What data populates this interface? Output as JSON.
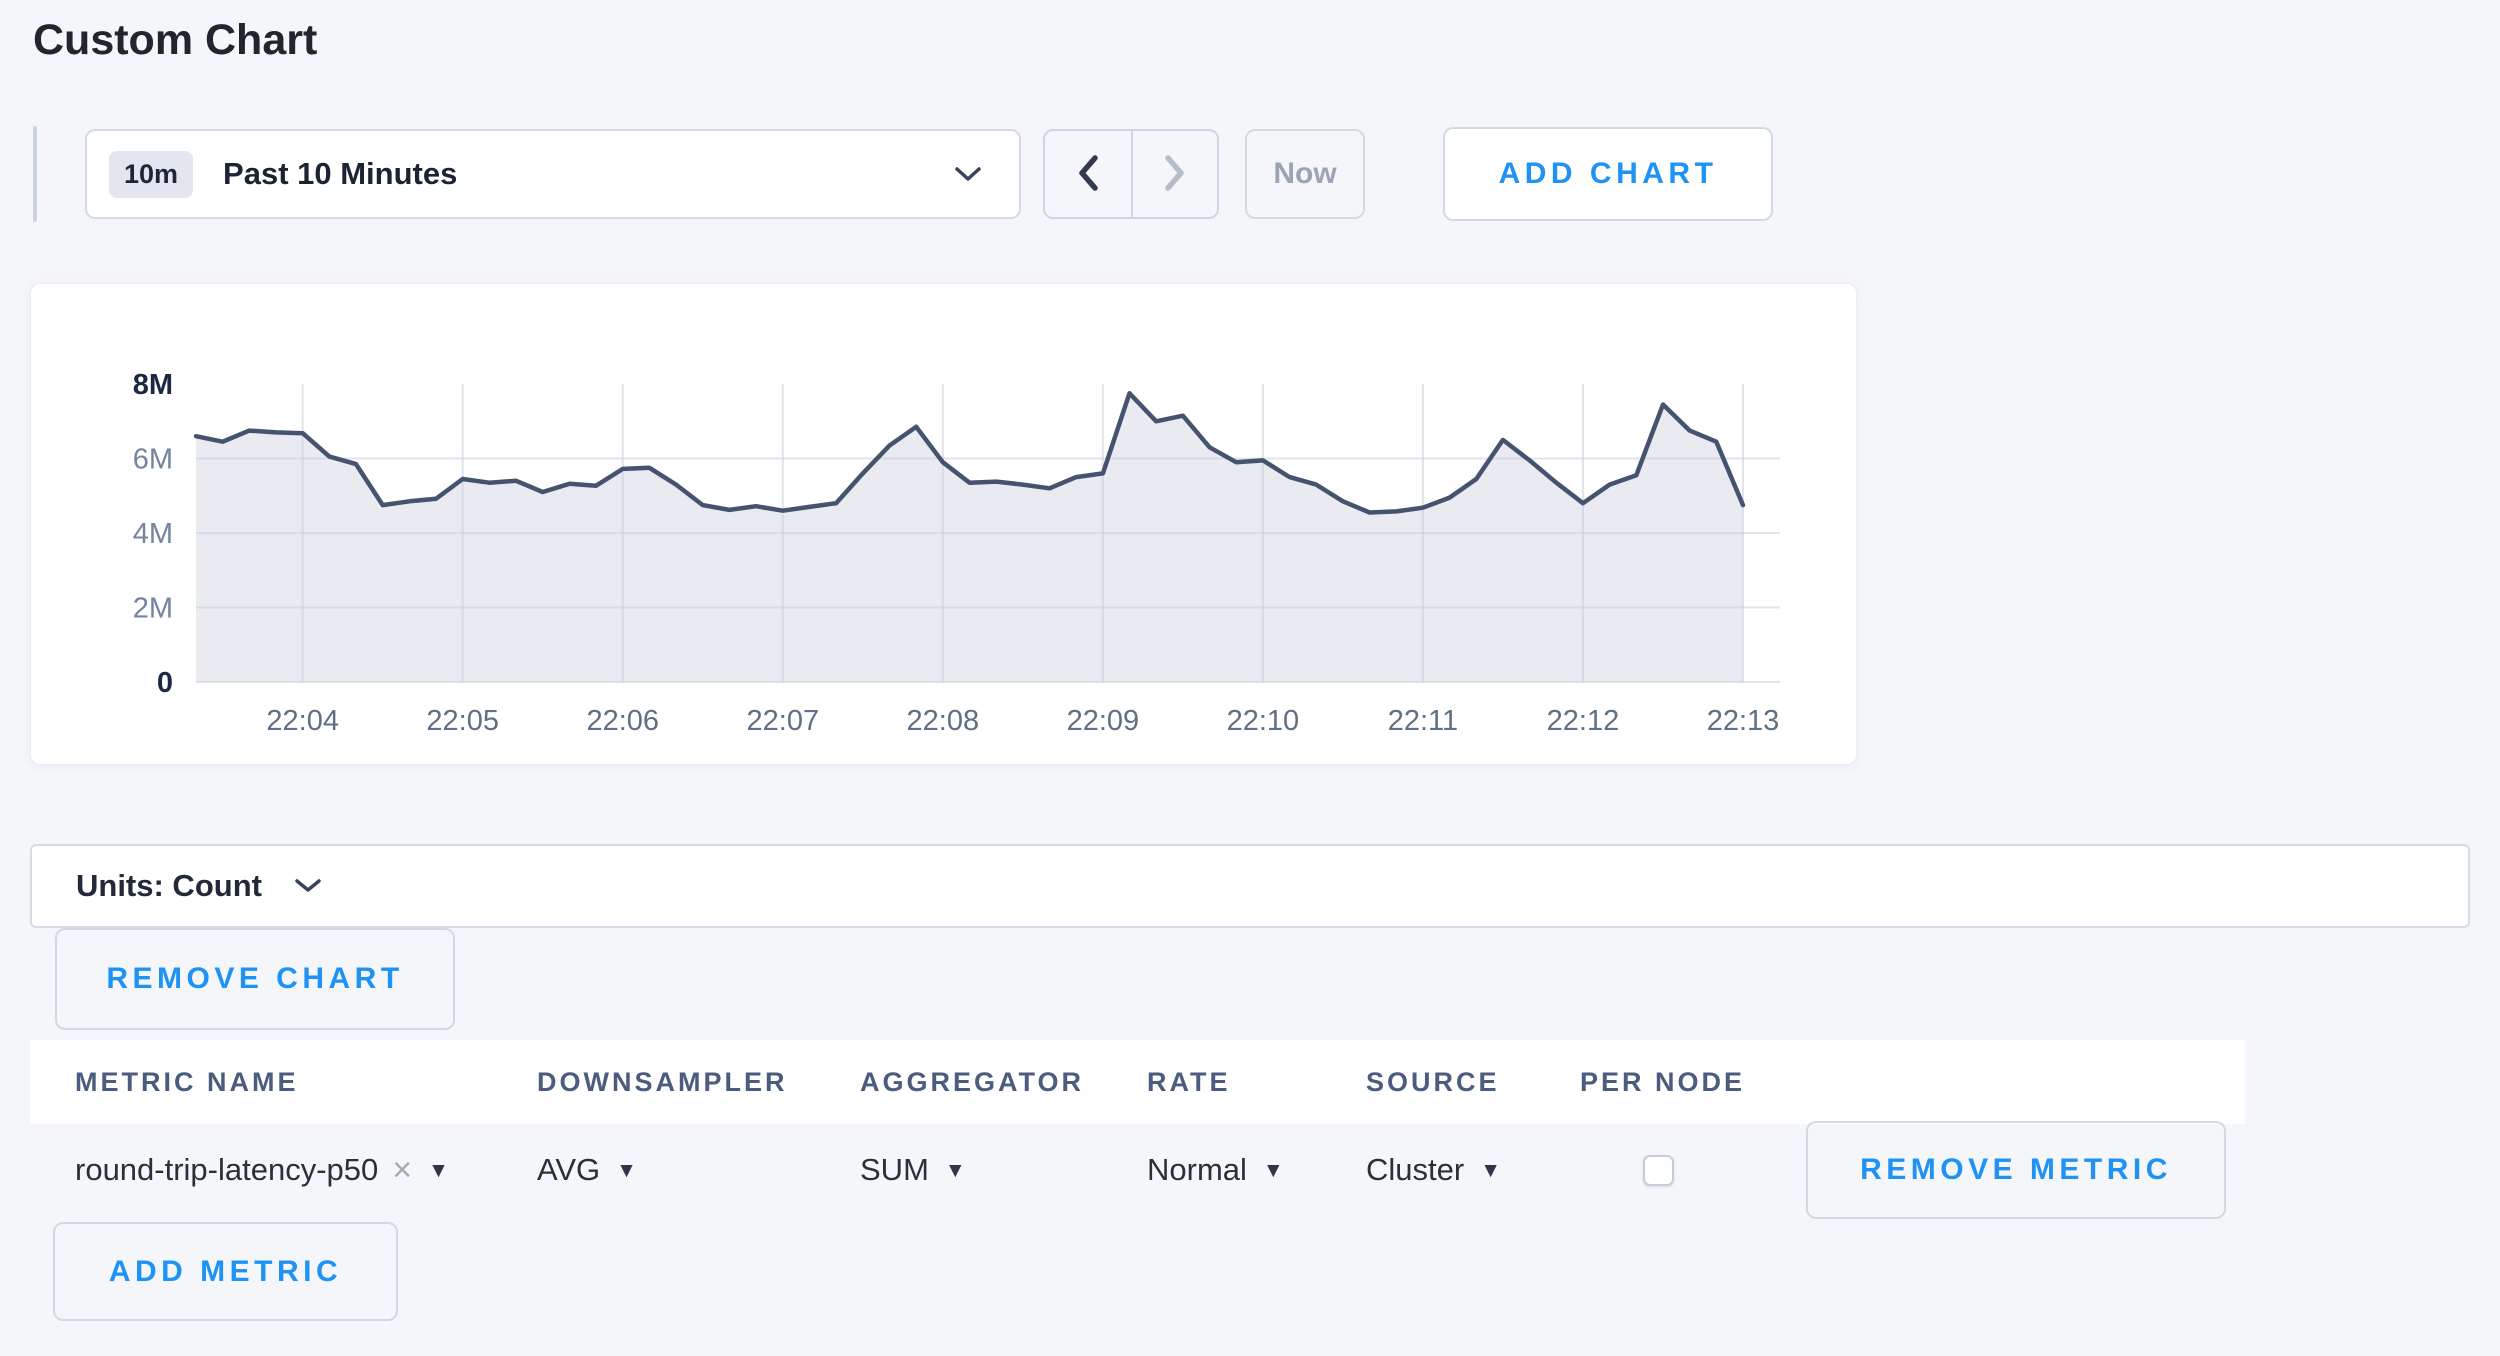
{
  "page": {
    "title": "Custom Chart",
    "background": "#f5f6fa",
    "accent_blue": "#1e93f5"
  },
  "toolbar": {
    "time_scale_badge": "10m",
    "time_scale_label": "Past 10 Minutes",
    "now_label": "Now",
    "add_chart_label": "ADD CHART"
  },
  "chart_data": {
    "type": "area",
    "title": "",
    "units": "Count",
    "grid": true,
    "ylim": [
      0,
      8000000
    ],
    "x_interval_seconds": 10,
    "x_ticks": [
      {
        "index": 4,
        "label": "22:04"
      },
      {
        "index": 10,
        "label": "22:05"
      },
      {
        "index": 16,
        "label": "22:06"
      },
      {
        "index": 22,
        "label": "22:07"
      },
      {
        "index": 28,
        "label": "22:08"
      },
      {
        "index": 34,
        "label": "22:09"
      },
      {
        "index": 40,
        "label": "22:10"
      },
      {
        "index": 46,
        "label": "22:11"
      },
      {
        "index": 52,
        "label": "22:12"
      },
      {
        "index": 58,
        "label": "22:13"
      }
    ],
    "y_ticks": [
      {
        "value": 0,
        "label": "0",
        "bold": true
      },
      {
        "value": 2000000,
        "label": "2M",
        "bold": false
      },
      {
        "value": 4000000,
        "label": "4M",
        "bold": false
      },
      {
        "value": 6000000,
        "label": "6M",
        "bold": false
      },
      {
        "value": 8000000,
        "label": "8M",
        "bold": true
      }
    ],
    "series": [
      {
        "name": "round-trip-latency-p50",
        "values": [
          6600000,
          6450000,
          6750000,
          6700000,
          6680000,
          6050000,
          5850000,
          4750000,
          4850000,
          4920000,
          5450000,
          5350000,
          5400000,
          5100000,
          5320000,
          5270000,
          5720000,
          5750000,
          5300000,
          4750000,
          4620000,
          4720000,
          4600000,
          4700000,
          4800000,
          5600000,
          6350000,
          6850000,
          5900000,
          5350000,
          5380000,
          5300000,
          5200000,
          5500000,
          5600000,
          7750000,
          7000000,
          7150000,
          6300000,
          5900000,
          5950000,
          5500000,
          5300000,
          4850000,
          4550000,
          4580000,
          4680000,
          4950000,
          5450000,
          6500000,
          5950000,
          5350000,
          4800000,
          5300000,
          5550000,
          7450000,
          6750000,
          6450000,
          4750000
        ]
      }
    ],
    "line_color": "#46536e",
    "fill_color": "#e9ebf1",
    "grid_color": "rgba(199,206,223,0.55)",
    "tick_color_light": "#74839e",
    "tick_color_bold": "#1b2945",
    "x_tick_color": "#5e7085"
  },
  "units_bar": {
    "label": "Units: Count"
  },
  "chart_actions": {
    "remove_chart_label": "REMOVE CHART"
  },
  "metrics_table": {
    "columns": [
      "METRIC NAME",
      "DOWNSAMPLER",
      "AGGREGATOR",
      "RATE",
      "SOURCE",
      "PER NODE"
    ],
    "rows": [
      {
        "metric_name": "round-trip-latency-p50",
        "downsampler": "AVG",
        "aggregator": "SUM",
        "rate": "Normal",
        "source": "Cluster",
        "per_node_checked": false,
        "remove_label": "REMOVE METRIC"
      }
    ],
    "add_metric_label": "ADD METRIC"
  },
  "icons": {
    "close": "×",
    "caret": "▼"
  }
}
